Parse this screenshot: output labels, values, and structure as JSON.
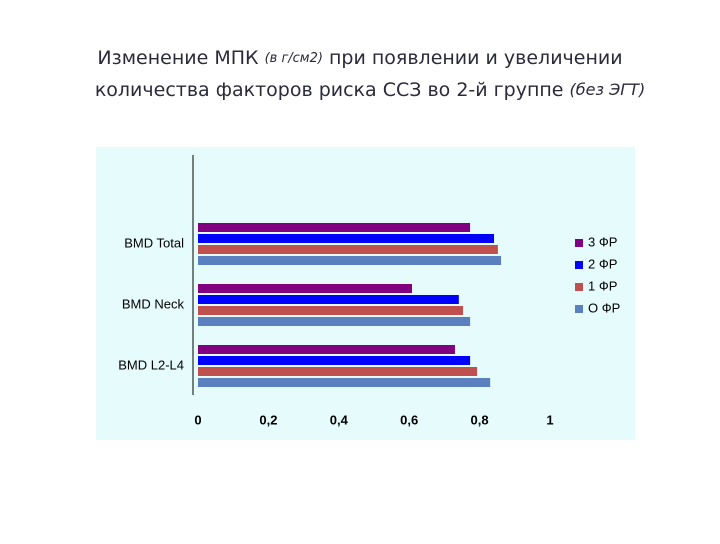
{
  "chart_data": {
    "type": "hbar",
    "title_segments": [
      "Изменение МПК",
      "(в г/см2)",
      "при появлении и увеличении",
      "количества факторов риска ССЗ во 2-й группе",
      "(без ЭГТ)"
    ],
    "categories": [
      "BMD Total",
      "BMD Neck",
      "BMD L2-L4"
    ],
    "series": [
      {
        "name": "3 ФР",
        "color": "#800080",
        "values": [
          0.773,
          0.608,
          0.73
        ]
      },
      {
        "name": "2 ФР",
        "color": "#0000ff",
        "values": [
          0.841,
          0.741,
          0.773
        ]
      },
      {
        "name": "1 ФР",
        "color": "#c0504d",
        "values": [
          0.852,
          0.753,
          0.793
        ]
      },
      {
        "name": "О ФР",
        "color": "#5a80c0",
        "values": [
          0.861,
          0.773,
          0.83
        ]
      }
    ],
    "xlim": [
      0,
      1
    ],
    "xticks": [
      0,
      {
        "value": 0.2,
        "label": "0,2"
      },
      {
        "value": 0.4,
        "label": "0,4"
      },
      {
        "value": 0.6,
        "label": "0,6"
      },
      {
        "value": 0.8,
        "label": "0,8"
      },
      1
    ],
    "legend": "right"
  }
}
